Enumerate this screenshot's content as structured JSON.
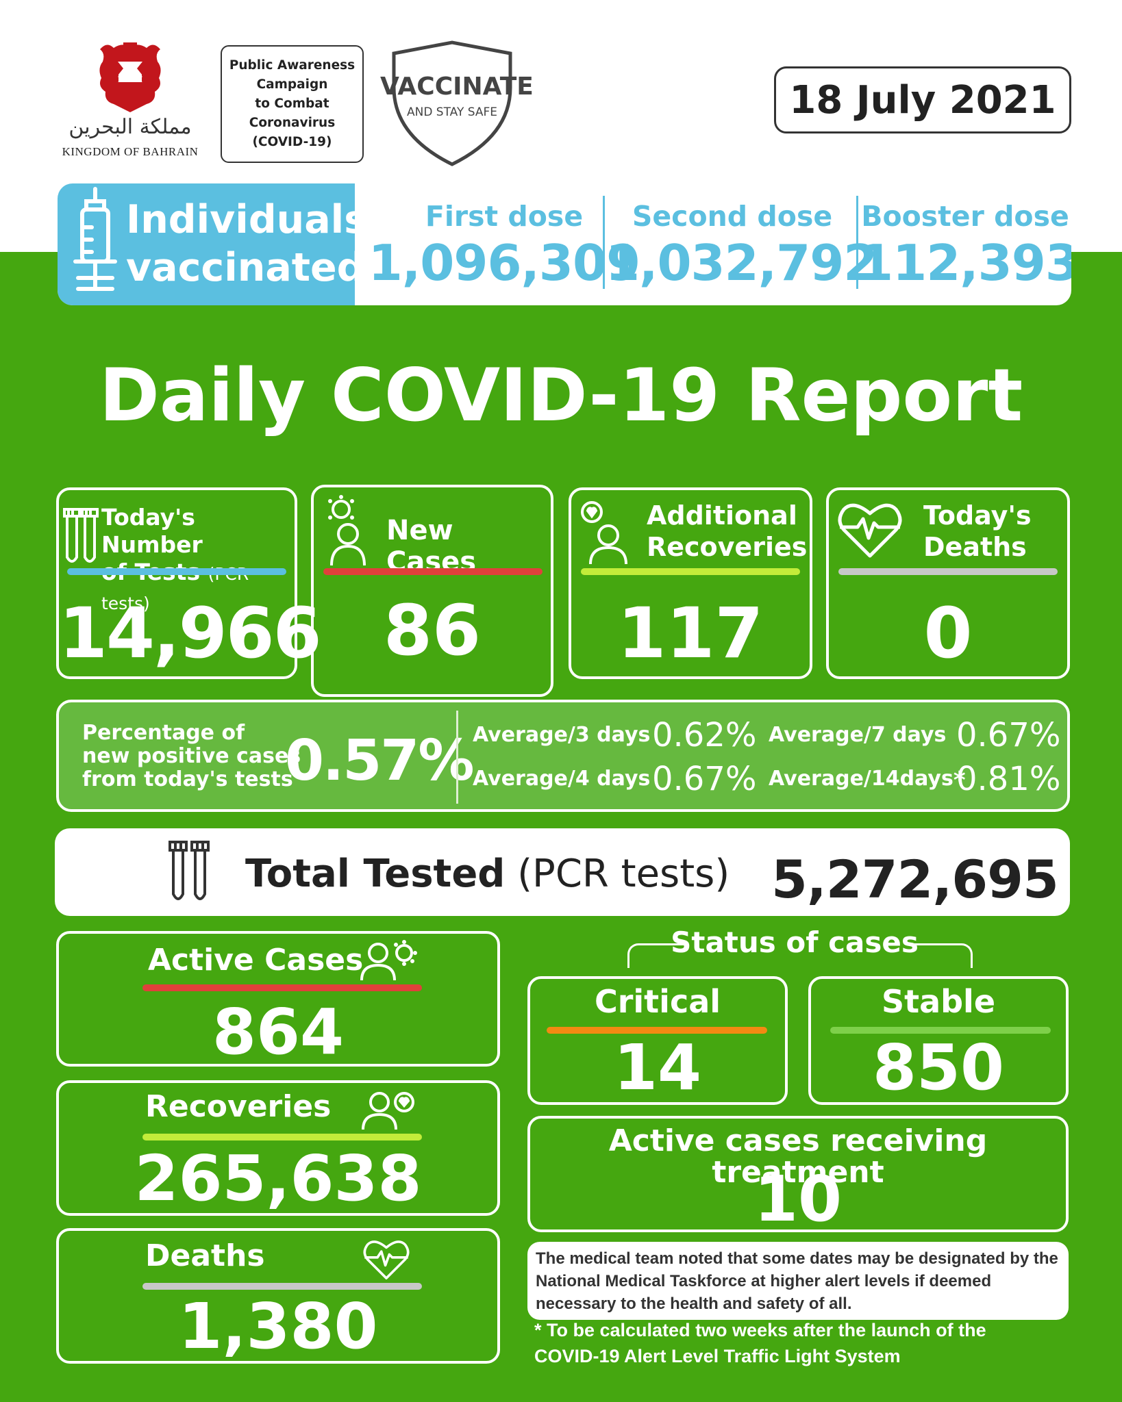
{
  "header": {
    "crest_arabic": "مملكة البحرين",
    "crest_english": "KINGDOM OF BAHRAIN",
    "campaign_text": "Public Awareness\nCampaign\nto Combat\nCoronavirus\n(COVID-19)",
    "shield_line1": "VACCINATE",
    "shield_line2": "AND STAY SAFE",
    "date": "18 July 2021"
  },
  "vaccination": {
    "label_line1": "Individuals",
    "label_line2": "vaccinated",
    "first_label": "First dose",
    "first_value": "1,096,309",
    "second_label": "Second dose",
    "second_value": "1,032,792",
    "booster_label": "Booster dose",
    "booster_value": "112,393"
  },
  "title": "Daily COVID-19 Report",
  "tests": {
    "label1": "Today's Number",
    "label2": "of Tests",
    "label_small": "(PCR tests)",
    "value": "14,966"
  },
  "new_cases": {
    "label": "New Cases",
    "value": "86"
  },
  "recoveries_today": {
    "label1": "Additional",
    "label2": "Recoveries",
    "value": "117"
  },
  "deaths_today": {
    "label1": "Today's",
    "label2": "Deaths",
    "value": "0"
  },
  "percentage": {
    "label": "Percentage of\nnew positive cases\nfrom today's tests",
    "value": "0.57%",
    "avg3_label": "Average/3 days",
    "avg3_value": "0.62%",
    "avg4_label": "Average/4 days",
    "avg4_value": "0.67%",
    "avg7_label": "Average/7 days",
    "avg7_value": "0.67%",
    "avg14_label": "Average/14days",
    "avg14_star": "*",
    "avg14_value": "0.81%"
  },
  "total_tested": {
    "label_bold": "Total Tested",
    "label_rest": " (PCR tests)",
    "value": "5,272,695"
  },
  "active_cases": {
    "label": "Active Cases",
    "value": "864"
  },
  "recoveries": {
    "label": "Recoveries",
    "value": "265,638"
  },
  "deaths": {
    "label": "Deaths",
    "value": "1,380"
  },
  "status": {
    "title": "Status of cases",
    "critical_label": "Critical",
    "critical_value": "14",
    "stable_label": "Stable",
    "stable_value": "850"
  },
  "treatment": {
    "label": "Active cases receiving treatment",
    "value": "10"
  },
  "note": "The medical team noted that some dates may be designated by the National Medical Taskforce at higher alert levels if deemed necessary to the health and safety of all.",
  "footnote": "*  To be calculated two weeks after the launch of the\nCOVID-19 Alert Level Traffic Light System",
  "colors": {
    "green": "#45a710",
    "blue": "#5bbfe0",
    "red_bar": "#e0413b",
    "lime_bar": "#c3ec3a",
    "grey_bar": "#c8c8c8",
    "orange_bar": "#f28a12",
    "light_green_bar": "#7ed04a"
  }
}
